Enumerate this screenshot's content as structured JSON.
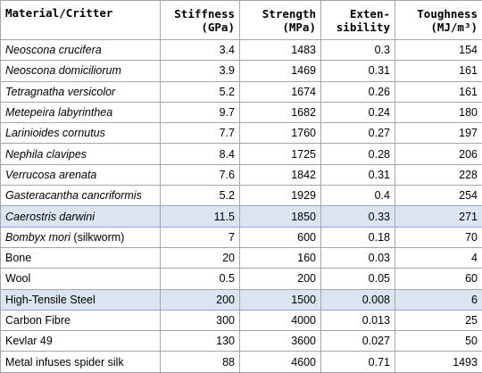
{
  "table": {
    "headers": {
      "material": [
        "Material/Critter"
      ],
      "stiffness": [
        "Stiffness",
        "(GPa)"
      ],
      "strength": [
        "Strength",
        "(MPa)"
      ],
      "extensibility": [
        "Exten-",
        "sibility"
      ],
      "toughness": [
        "Toughness",
        "(MJ/m³)"
      ]
    },
    "rows": [
      {
        "name": "Neoscona crucifera",
        "name_suffix": "",
        "italic": true,
        "highlight": false,
        "stiffness": "3.4",
        "strength": "1483",
        "extensibility": "0.3",
        "toughness": "154"
      },
      {
        "name": "Neoscona domiciliorum",
        "name_suffix": "",
        "italic": true,
        "highlight": false,
        "stiffness": "3.9",
        "strength": "1469",
        "extensibility": "0.31",
        "toughness": "161"
      },
      {
        "name": "Tetragnatha versicolor",
        "name_suffix": "",
        "italic": true,
        "highlight": false,
        "stiffness": "5.2",
        "strength": "1674",
        "extensibility": "0.26",
        "toughness": "161"
      },
      {
        "name": "Metepeira labyrinthea",
        "name_suffix": "",
        "italic": true,
        "highlight": false,
        "stiffness": "9.7",
        "strength": "1682",
        "extensibility": "0.24",
        "toughness": "180"
      },
      {
        "name": "Larinioides cornutus",
        "name_suffix": "",
        "italic": true,
        "highlight": false,
        "stiffness": "7.7",
        "strength": "1760",
        "extensibility": "0.27",
        "toughness": "197"
      },
      {
        "name": "Nephila clavipes",
        "name_suffix": "",
        "italic": true,
        "highlight": false,
        "stiffness": "8.4",
        "strength": "1725",
        "extensibility": "0.28",
        "toughness": "206"
      },
      {
        "name": "Verrucosa arenata",
        "name_suffix": "",
        "italic": true,
        "highlight": false,
        "stiffness": "7.6",
        "strength": "1842",
        "extensibility": "0.31",
        "toughness": "228"
      },
      {
        "name": "Gasteracantha cancriformis",
        "name_suffix": "",
        "italic": true,
        "highlight": false,
        "stiffness": "5.2",
        "strength": "1929",
        "extensibility": "0.4",
        "toughness": "254"
      },
      {
        "name": "Caerostris darwini",
        "name_suffix": "",
        "italic": true,
        "highlight": true,
        "stiffness": "11.5",
        "strength": "1850",
        "extensibility": "0.33",
        "toughness": "271"
      },
      {
        "name": "Bombyx mori",
        "name_suffix": " (silkworm)",
        "italic": true,
        "highlight": false,
        "stiffness": "7",
        "strength": "600",
        "extensibility": "0.18",
        "toughness": "70"
      },
      {
        "name": "Bone",
        "name_suffix": "",
        "italic": false,
        "highlight": false,
        "stiffness": "20",
        "strength": "160",
        "extensibility": "0.03",
        "toughness": "4"
      },
      {
        "name": "Wool",
        "name_suffix": "",
        "italic": false,
        "highlight": false,
        "stiffness": "0.5",
        "strength": "200",
        "extensibility": "0.05",
        "toughness": "60"
      },
      {
        "name": "High-Tensile Steel",
        "name_suffix": "",
        "italic": false,
        "highlight": true,
        "stiffness": "200",
        "strength": "1500",
        "extensibility": "0.008",
        "toughness": "6"
      },
      {
        "name": "Carbon Fibre",
        "name_suffix": "",
        "italic": false,
        "highlight": false,
        "stiffness": "300",
        "strength": "4000",
        "extensibility": "0.013",
        "toughness": "25"
      },
      {
        "name": "Kevlar 49",
        "name_suffix": "",
        "italic": false,
        "highlight": false,
        "stiffness": "130",
        "strength": "3600",
        "extensibility": "0.027",
        "toughness": "50"
      },
      {
        "name": "Metal infuses spider silk",
        "name_suffix": "",
        "italic": false,
        "highlight": false,
        "stiffness": "88",
        "strength": "4600",
        "extensibility": "0.71",
        "toughness": "1493"
      }
    ],
    "colors": {
      "highlight_background": "#dbe5f1",
      "grid_lines": "#a6a6a6"
    }
  }
}
